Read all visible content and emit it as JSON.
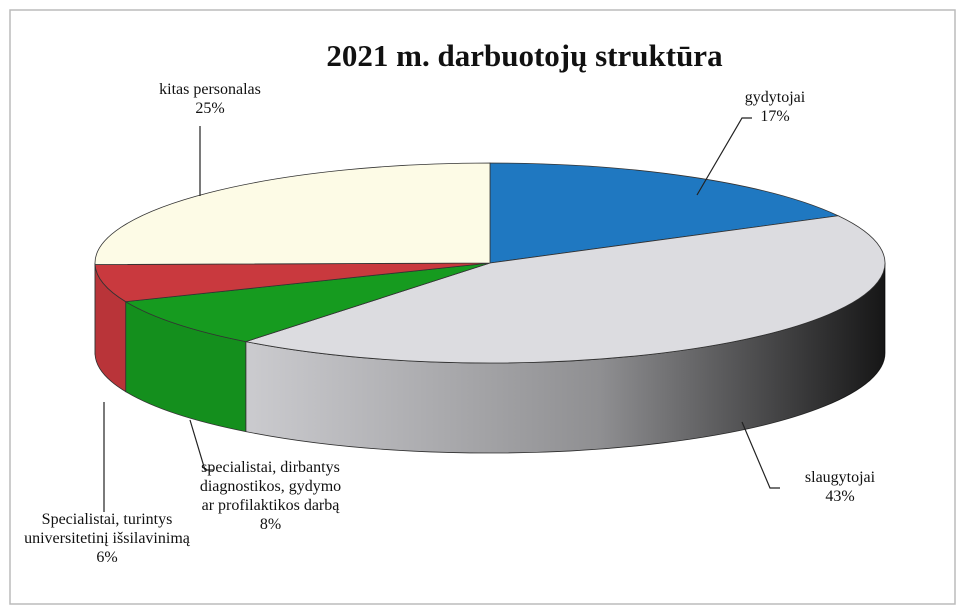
{
  "chart_data": {
    "type": "pie3d",
    "title": "2021 m. darbuotojų struktūra",
    "categories": [
      "gydytojai",
      "slaugytojai",
      "specialistai, dirbantys diagnostikos, gydymo ar profilaktikos darbą",
      "Specialistai, turintys universitetinį išsilavinimą",
      "kitas personalas"
    ],
    "values": [
      17,
      43,
      8,
      6,
      25
    ],
    "value_labels": [
      "17%",
      "43%",
      "8%",
      "6%",
      "25%"
    ],
    "colors": [
      "#1f78c1",
      "#dcdce0",
      "#169b1f",
      "#c9393e",
      "#fdfbe6"
    ]
  }
}
